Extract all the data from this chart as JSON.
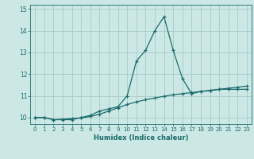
{
  "xlabel": "Humidex (Indice chaleur)",
  "background_color": "#cce8e5",
  "grid_color": "#aacfcc",
  "line_color": "#1a6b6b",
  "x_values": [
    0,
    1,
    2,
    3,
    4,
    5,
    6,
    7,
    8,
    9,
    10,
    11,
    12,
    13,
    14,
    15,
    16,
    17,
    18,
    19,
    20,
    21,
    22,
    23
  ],
  "line1_y": [
    10.0,
    10.0,
    9.9,
    9.9,
    9.9,
    10.0,
    10.1,
    10.3,
    10.4,
    10.5,
    11.0,
    12.6,
    13.1,
    14.0,
    14.65,
    13.1,
    11.8,
    11.1,
    11.2,
    11.25,
    11.3,
    11.3,
    11.3,
    11.3
  ],
  "line2_y": [
    10.0,
    10.0,
    9.9,
    9.92,
    9.95,
    9.98,
    10.05,
    10.15,
    10.3,
    10.45,
    10.6,
    10.72,
    10.82,
    10.9,
    10.98,
    11.05,
    11.1,
    11.15,
    11.2,
    11.25,
    11.3,
    11.35,
    11.4,
    11.45
  ],
  "ylim": [
    9.7,
    15.2
  ],
  "xlim": [
    -0.5,
    23.5
  ],
  "yticks": [
    10,
    11,
    12,
    13,
    14,
    15
  ],
  "xticks": [
    0,
    1,
    2,
    3,
    4,
    5,
    6,
    7,
    8,
    9,
    10,
    11,
    12,
    13,
    14,
    15,
    16,
    17,
    18,
    19,
    20,
    21,
    22,
    23
  ],
  "xlabel_fontsize": 6.0,
  "tick_fontsize": 5.0,
  "ytick_fontsize": 5.5
}
